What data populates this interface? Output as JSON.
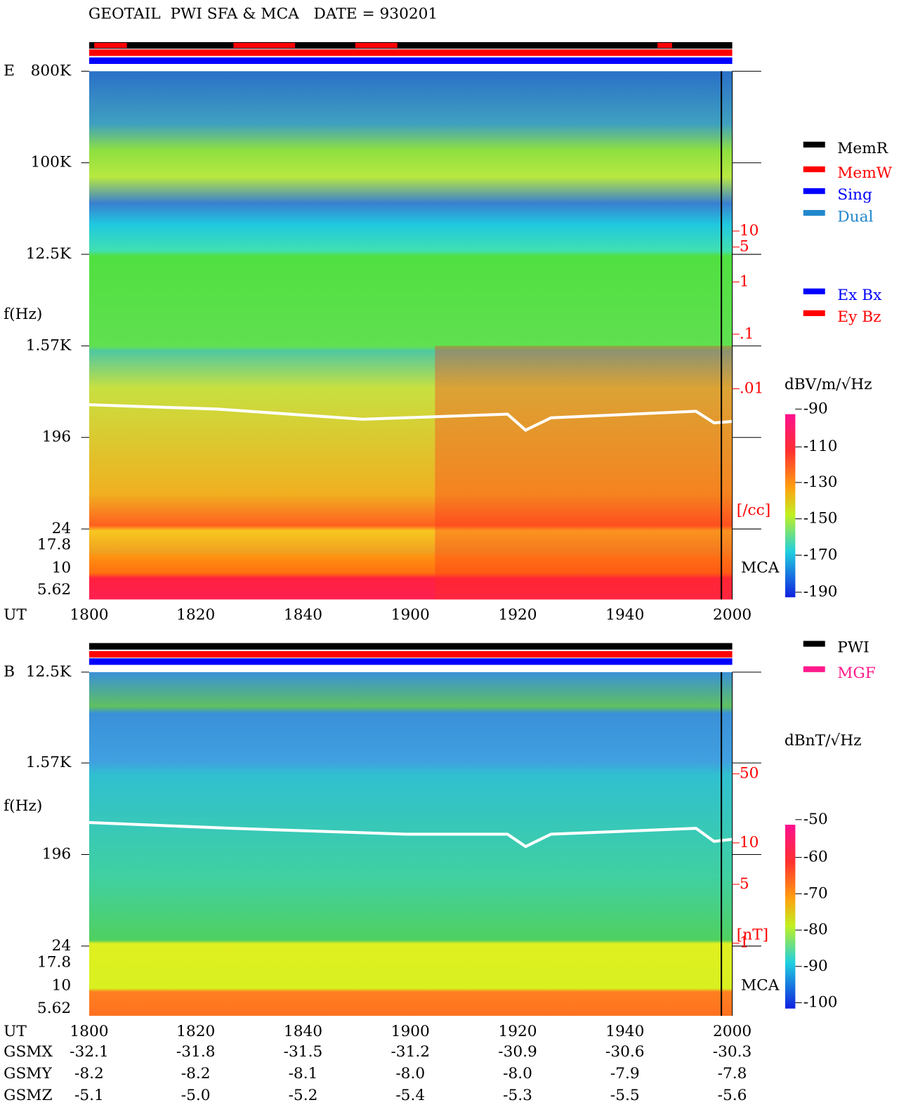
{
  "header": {
    "title": "GEOTAIL  PWI SFA & MCA   DATE = 930201"
  },
  "panels": [
    {
      "label": "E",
      "y_label": "f(Hz)",
      "freq_ticks": [
        "800K",
        "100K",
        "12.5K",
        "1.57K",
        "196",
        "24",
        "17.8",
        "10",
        "5.62"
      ],
      "density_ticks": [
        "10",
        "5",
        "1",
        ".1",
        ".01"
      ],
      "density_unit": "[/cc]",
      "mca_label": "MCA",
      "time_label": "UT",
      "time_ticks": [
        "1800",
        "1820",
        "1840",
        "1900",
        "1920",
        "1940",
        "2000"
      ],
      "legend": [
        {
          "label": "MemR",
          "color": "#000000"
        },
        {
          "label": "MemW",
          "color": "#ff0000"
        },
        {
          "label": "Sing",
          "color": "#0000ff"
        },
        {
          "label": "Dual",
          "color": "#2288cc"
        },
        {
          "label": "Ex Bx",
          "color": "#0000ff"
        },
        {
          "label": "Ey Bz",
          "color": "#ff0000"
        }
      ],
      "colorbar_unit": "dBV/m/√Hz",
      "colorbar_ticks": [
        "-90",
        "-110",
        "-130",
        "-150",
        "-170",
        "-190"
      ]
    },
    {
      "label": "B",
      "y_label": "f(Hz)",
      "freq_ticks": [
        "12.5K",
        "1.57K",
        "196",
        "24",
        "17.8",
        "10",
        "5.62"
      ],
      "density_ticks": [
        "50",
        "10",
        "5",
        "1"
      ],
      "density_unit": "[nT]",
      "mca_label": "MCA",
      "time_label": "UT",
      "time_ticks": [
        "1800",
        "1820",
        "1840",
        "1900",
        "1920",
        "1940",
        "2000"
      ],
      "legend": [
        {
          "label": "PWI",
          "color": "#000000"
        },
        {
          "label": "MGF",
          "color": "#ff1a8c"
        }
      ],
      "colorbar_unit": "dBnT/√Hz",
      "colorbar_ticks": [
        "-50",
        "-60",
        "-70",
        "-80",
        "-90",
        "-100"
      ]
    }
  ],
  "orbit": {
    "rows": [
      [
        "GSMX",
        "-32.1",
        "-31.8",
        "-31.5",
        "-31.2",
        "-30.9",
        "-30.6",
        "-30.3"
      ],
      [
        "GSMY",
        "-8.2",
        "-8.2",
        "-8.1",
        "-8.0",
        "-8.0",
        "-7.9",
        "-7.8"
      ],
      [
        "GSMZ",
        "-5.1",
        "-5.0",
        "-5.2",
        "-5.4",
        "-5.3",
        "-5.5",
        "-5.6"
      ]
    ]
  }
}
